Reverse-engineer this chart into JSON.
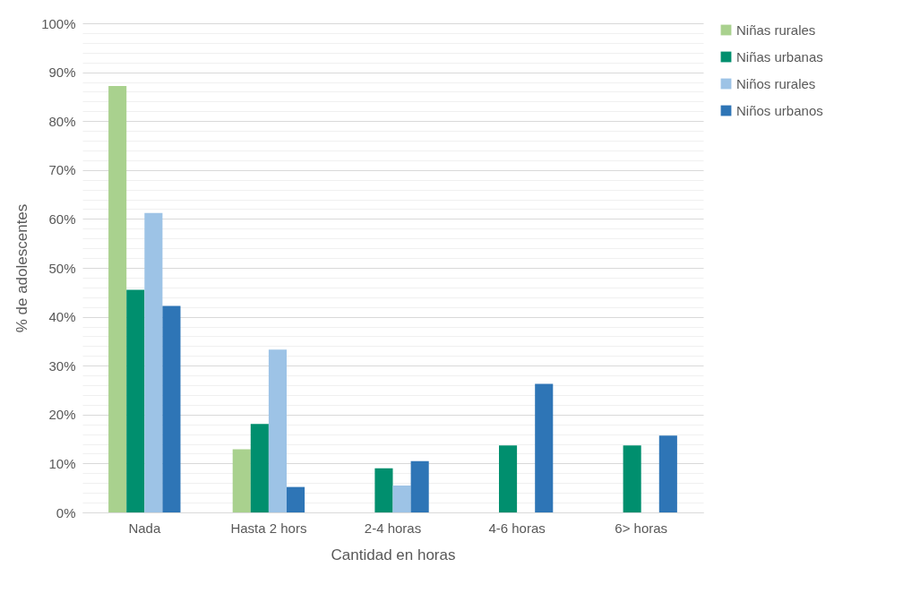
{
  "chart_data": {
    "type": "bar",
    "xlabel": "Cantidad en horas",
    "ylabel": "% de adolescentes",
    "categories": [
      "Nada",
      "Hasta 2 hors",
      "2-4 horas",
      "4-6 horas",
      "6> horas"
    ],
    "series": [
      {
        "name": "Niñas rurales",
        "color": "#a9d18e",
        "values": [
          87.2,
          12.9,
          null,
          null,
          null
        ]
      },
      {
        "name": "Niñas urbanas",
        "color": "#008f6e",
        "values": [
          45.5,
          18.1,
          9.0,
          13.7,
          13.7
        ]
      },
      {
        "name": "Niños rurales",
        "color": "#9dc3e6",
        "values": [
          61.2,
          33.3,
          5.5,
          null,
          null
        ]
      },
      {
        "name": "Niños urbanos",
        "color": "#2e75b6",
        "values": [
          42.2,
          5.2,
          10.5,
          26.3,
          15.7
        ]
      }
    ],
    "ylim": [
      0,
      100
    ],
    "yticks": [
      {
        "value": 0,
        "label": "0%"
      },
      {
        "value": 2,
        "label": null
      },
      {
        "value": 4,
        "label": null
      },
      {
        "value": 6,
        "label": null
      },
      {
        "value": 8,
        "label": null
      },
      {
        "value": 10,
        "label": "10%"
      },
      {
        "value": 12,
        "label": null
      },
      {
        "value": 14,
        "label": null
      },
      {
        "value": 16,
        "label": null
      },
      {
        "value": 18,
        "label": null
      },
      {
        "value": 20,
        "label": "20%"
      },
      {
        "value": 22,
        "label": null
      },
      {
        "value": 24,
        "label": null
      },
      {
        "value": 26,
        "label": null
      },
      {
        "value": 28,
        "label": null
      },
      {
        "value": 30,
        "label": "30%"
      },
      {
        "value": 32,
        "label": null
      },
      {
        "value": 34,
        "label": null
      },
      {
        "value": 36,
        "label": null
      },
      {
        "value": 38,
        "label": null
      },
      {
        "value": 40,
        "label": "40%"
      },
      {
        "value": 42,
        "label": null
      },
      {
        "value": 44,
        "label": null
      },
      {
        "value": 46,
        "label": null
      },
      {
        "value": 48,
        "label": null
      },
      {
        "value": 50,
        "label": "50%"
      },
      {
        "value": 52,
        "label": null
      },
      {
        "value": 54,
        "label": null
      },
      {
        "value": 56,
        "label": null
      },
      {
        "value": 58,
        "label": null
      },
      {
        "value": 60,
        "label": "60%"
      },
      {
        "value": 62,
        "label": null
      },
      {
        "value": 64,
        "label": null
      },
      {
        "value": 66,
        "label": null
      },
      {
        "value": 68,
        "label": null
      },
      {
        "value": 70,
        "label": "70%"
      },
      {
        "value": 72,
        "label": null
      },
      {
        "value": 74,
        "label": null
      },
      {
        "value": 76,
        "label": null
      },
      {
        "value": 78,
        "label": null
      },
      {
        "value": 80,
        "label": "80%"
      },
      {
        "value": 82,
        "label": null
      },
      {
        "value": 84,
        "label": null
      },
      {
        "value": 86,
        "label": null
      },
      {
        "value": 88,
        "label": null
      },
      {
        "value": 90,
        "label": "90%"
      },
      {
        "value": 92,
        "label": null
      },
      {
        "value": 94,
        "label": null
      },
      {
        "value": 96,
        "label": null
      },
      {
        "value": 98,
        "label": null
      },
      {
        "value": 100,
        "label": "100%"
      }
    ],
    "grid": "y",
    "legend": "right"
  }
}
